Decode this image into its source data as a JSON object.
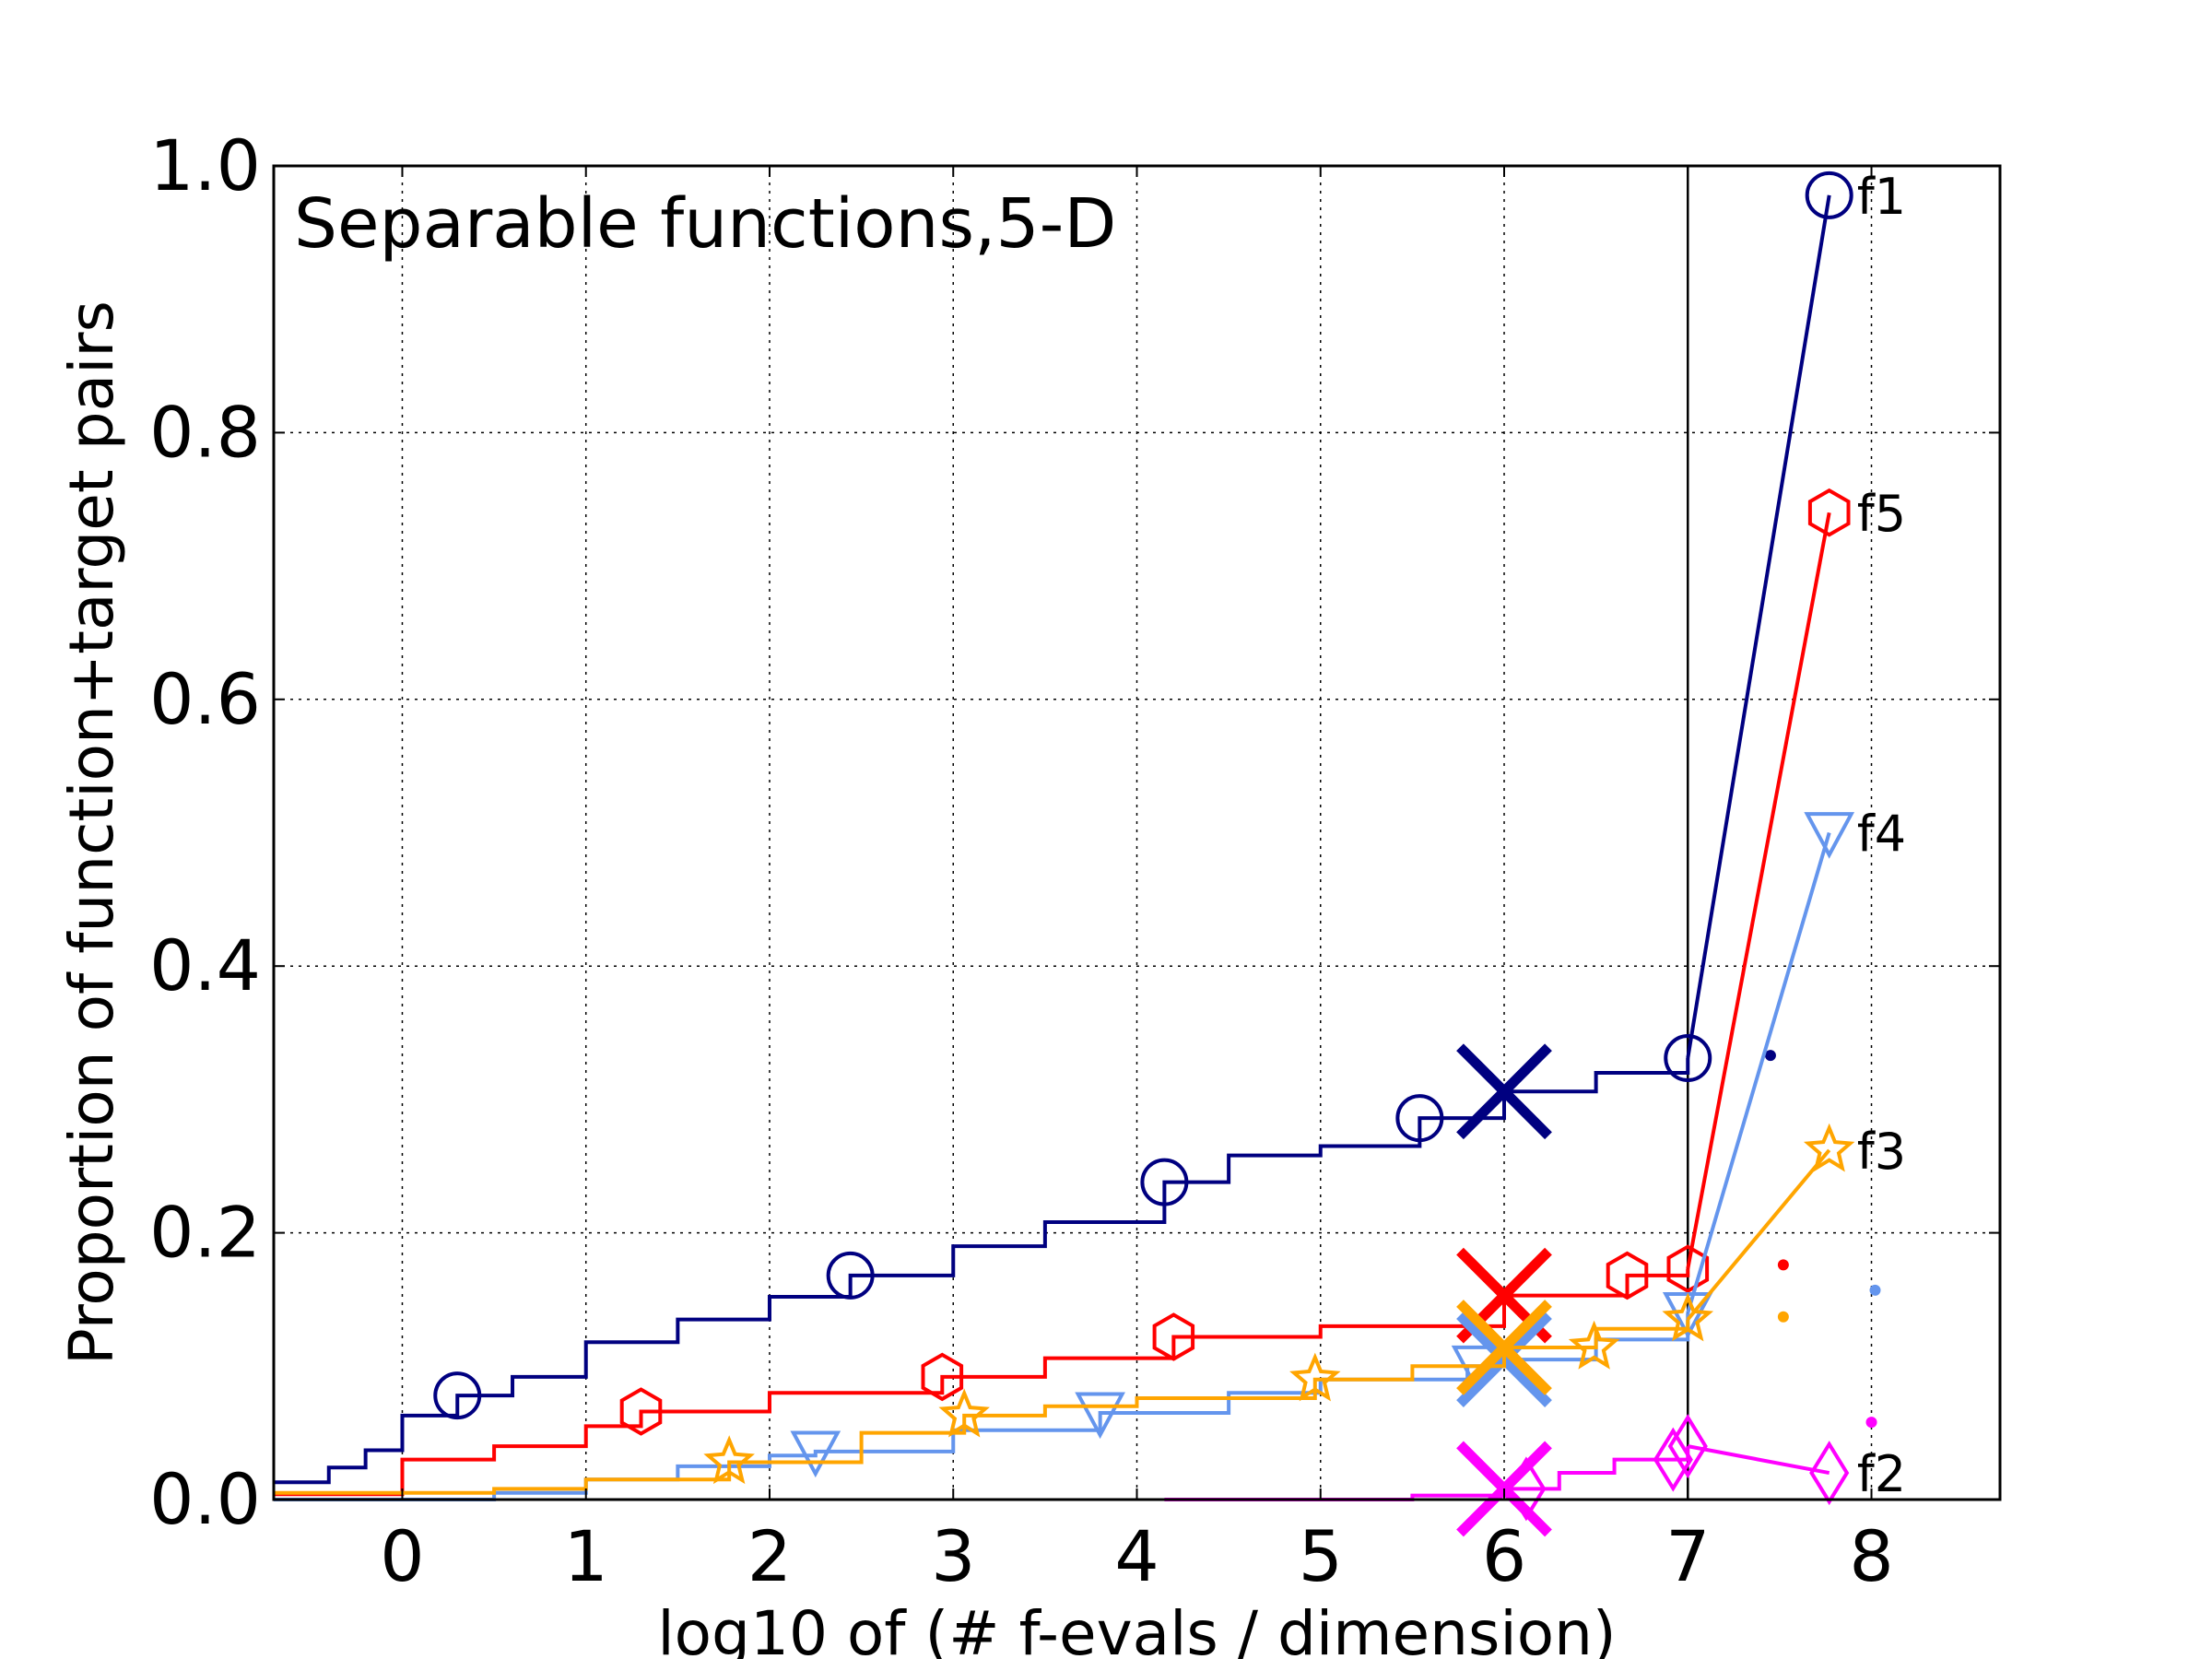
{
  "chart_data": {
    "type": "line",
    "title": "Separable functions,5-D",
    "xlabel": "log10 of (# f-evals / dimension)",
    "ylabel": "Proportion of function+target pairs",
    "xlim": [
      -0.7,
      8.7
    ],
    "ylim": [
      0.0,
      1.0
    ],
    "xticks": [
      "0",
      "1",
      "2",
      "3",
      "4",
      "5",
      "6",
      "7",
      "8"
    ],
    "yticks": [
      "0.0",
      "0.2",
      "0.4",
      "0.6",
      "0.8",
      "1.0"
    ],
    "grid": true,
    "budget_line_x": 7.0,
    "series": [
      {
        "name": "f1",
        "color": "#000080",
        "marker": "circle",
        "steps": [
          [
            -0.7,
            0.013
          ],
          [
            -0.4,
            0.024
          ],
          [
            -0.2,
            0.037
          ],
          [
            0.0,
            0.063
          ],
          [
            0.3,
            0.078
          ],
          [
            0.6,
            0.092
          ],
          [
            1.0,
            0.118
          ],
          [
            1.5,
            0.135
          ],
          [
            2.0,
            0.152
          ],
          [
            2.44,
            0.168
          ],
          [
            3.0,
            0.19
          ],
          [
            3.5,
            0.208
          ],
          [
            4.15,
            0.238
          ],
          [
            4.5,
            0.258
          ],
          [
            5.0,
            0.265
          ],
          [
            5.54,
            0.286
          ],
          [
            6.0,
            0.306
          ],
          [
            6.5,
            0.32
          ],
          [
            7.0,
            0.331
          ]
        ],
        "markers_x": [
          0.3,
          2.44,
          4.15,
          5.54
        ],
        "end": [
          7.0,
          0.331
        ],
        "final": [
          7.77,
          0.978
        ],
        "aggregate_x": [
          6.0,
          0.306
        ],
        "dot": [
          7.45,
          0.333
        ]
      },
      {
        "name": "f5",
        "color": "#ff0000",
        "marker": "hexagon",
        "steps": [
          [
            -0.7,
            0.004
          ],
          [
            0.0,
            0.03
          ],
          [
            0.5,
            0.04
          ],
          [
            1.0,
            0.055
          ],
          [
            1.3,
            0.066
          ],
          [
            2.0,
            0.08
          ],
          [
            2.94,
            0.092
          ],
          [
            3.5,
            0.106
          ],
          [
            4.2,
            0.122
          ],
          [
            5.0,
            0.13
          ],
          [
            6.0,
            0.153
          ],
          [
            6.67,
            0.168
          ],
          [
            7.0,
            0.173
          ]
        ],
        "markers_x": [
          1.3,
          2.94,
          4.2,
          6.67
        ],
        "end": [
          7.0,
          0.173
        ],
        "final": [
          7.77,
          0.74
        ],
        "aggregate_x": [
          6.0,
          0.153
        ],
        "dot": [
          7.52,
          0.176
        ]
      },
      {
        "name": "f4",
        "color": "#6495ed",
        "marker": "triangle_down",
        "steps": [
          [
            -0.7,
            0.0
          ],
          [
            0.5,
            0.005
          ],
          [
            1.0,
            0.015
          ],
          [
            1.5,
            0.025
          ],
          [
            2.0,
            0.033
          ],
          [
            2.25,
            0.036
          ],
          [
            3.0,
            0.052
          ],
          [
            3.8,
            0.065
          ],
          [
            4.5,
            0.08
          ],
          [
            5.0,
            0.09
          ],
          [
            5.8,
            0.1
          ],
          [
            6.0,
            0.105
          ],
          [
            6.5,
            0.12
          ],
          [
            7.0,
            0.14
          ]
        ],
        "markers_x": [
          2.25,
          3.8,
          5.85
        ],
        "end": [
          7.0,
          0.14
        ],
        "final": [
          7.77,
          0.5
        ],
        "aggregate_x": [
          6.0,
          0.105
        ],
        "dot": [
          8.02,
          0.157
        ]
      },
      {
        "name": "f3",
        "color": "#ffa500",
        "marker": "star",
        "steps": [
          [
            -0.7,
            0.005
          ],
          [
            0.5,
            0.008
          ],
          [
            1.0,
            0.015
          ],
          [
            1.78,
            0.028
          ],
          [
            2.5,
            0.05
          ],
          [
            3.06,
            0.063
          ],
          [
            3.5,
            0.07
          ],
          [
            4.0,
            0.076
          ],
          [
            4.97,
            0.09
          ],
          [
            5.5,
            0.1
          ],
          [
            6.0,
            0.114
          ],
          [
            6.5,
            0.128
          ],
          [
            7.0,
            0.135
          ]
        ],
        "markers_x": [
          1.78,
          3.06,
          4.97,
          6.49
        ],
        "end": [
          7.0,
          0.135
        ],
        "final": [
          7.77,
          0.262
        ],
        "aggregate_x": [
          6.0,
          0.114
        ],
        "dot": [
          7.52,
          0.137
        ]
      },
      {
        "name": "f2",
        "color": "#ff00ff",
        "marker": "diamond",
        "steps": [
          [
            4.15,
            0.0
          ],
          [
            5.3,
            0.0
          ],
          [
            5.5,
            0.003
          ],
          [
            6.0,
            0.008
          ],
          [
            6.3,
            0.02
          ],
          [
            6.6,
            0.03
          ],
          [
            7.0,
            0.04
          ]
        ],
        "markers_x": [
          6.12,
          6.92
        ],
        "end": [
          7.0,
          0.04
        ],
        "final": [
          7.77,
          0.02
        ],
        "aggregate_x": [
          6.0,
          0.008
        ],
        "dot": [
          8.0,
          0.058
        ]
      }
    ]
  }
}
